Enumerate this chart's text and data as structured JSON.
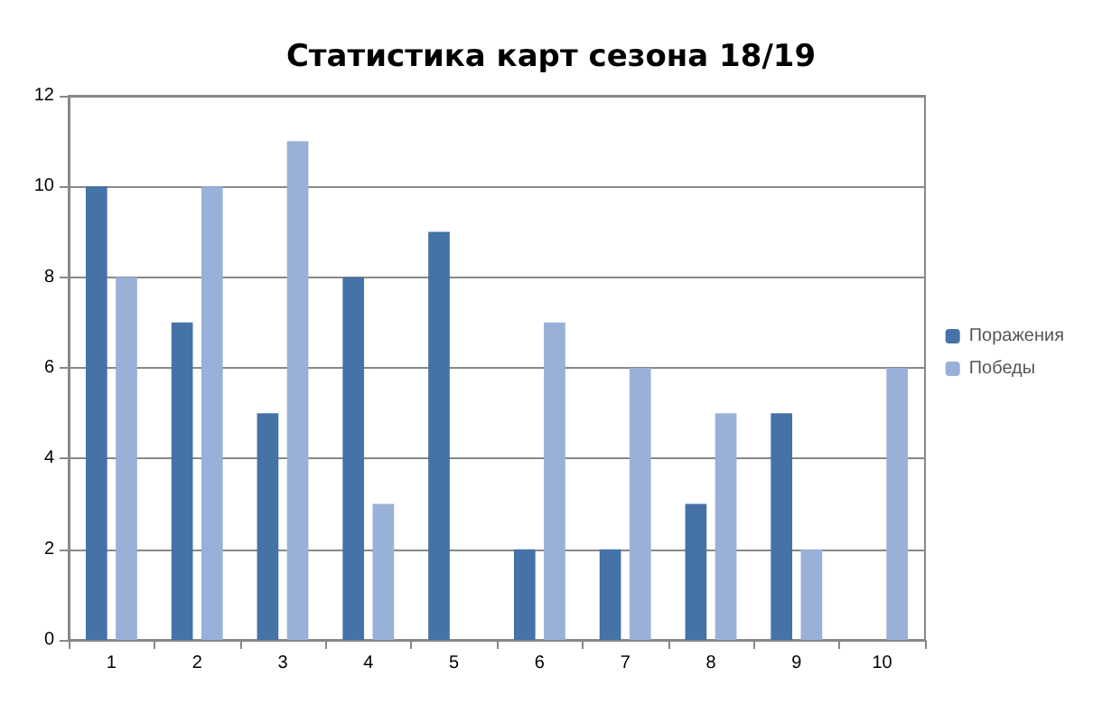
{
  "chart_data": {
    "type": "bar",
    "title": "Статистика карт сезона 18/19",
    "categories": [
      "1",
      "2",
      "3",
      "4",
      "5",
      "6",
      "7",
      "8",
      "9",
      "10"
    ],
    "series": [
      {
        "name": "Поражения",
        "color": "#4572a7",
        "values": [
          10,
          7,
          5,
          8,
          9,
          2,
          2,
          3,
          5,
          0
        ]
      },
      {
        "name": "Победы",
        "color": "#99b0d8",
        "values": [
          8,
          10,
          11,
          3,
          0,
          7,
          6,
          5,
          2,
          6
        ]
      }
    ],
    "ylim": [
      0,
      12
    ],
    "yticks": [
      0,
      2,
      4,
      6,
      8,
      10,
      12
    ],
    "grid": "y",
    "legend": "right"
  }
}
